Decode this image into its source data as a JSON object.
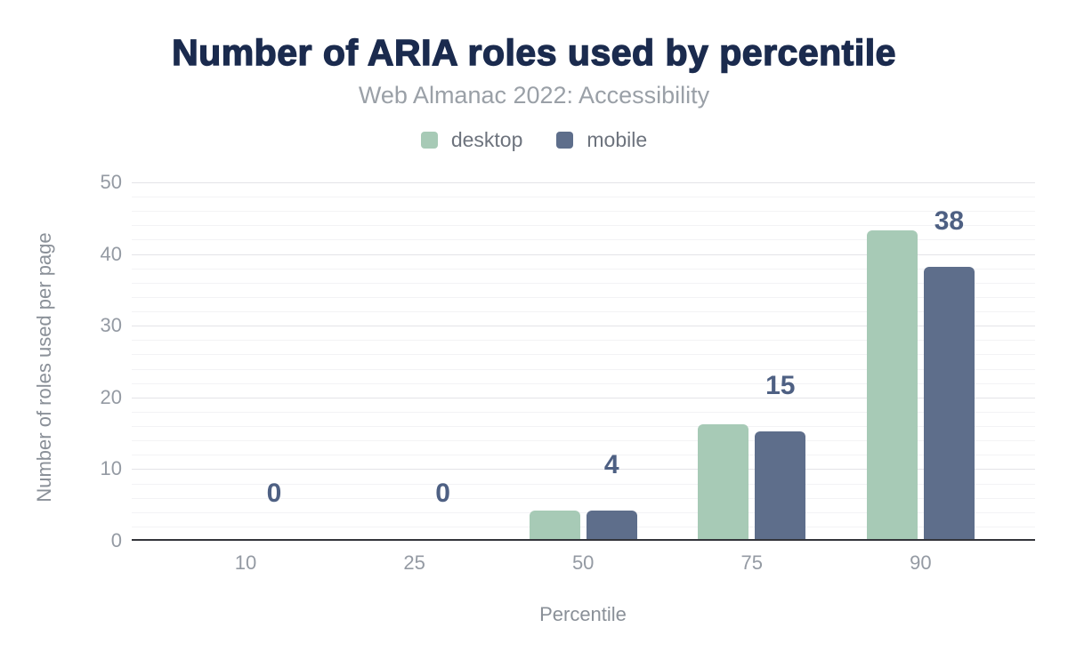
{
  "figure": {
    "title": "Number of ARIA roles used by percentile",
    "subtitle": "Web Almanac 2022: Accessibility",
    "x_axis_title": "Percentile",
    "y_axis_title": "Number of roles used per page"
  },
  "chart_data": {
    "type": "bar",
    "title": "Number of ARIA roles used by percentile",
    "subtitle": "Web Almanac 2022: Accessibility",
    "xlabel": "Percentile",
    "ylabel": "Number of roles used per page",
    "categories": [
      "10",
      "25",
      "50",
      "75",
      "90"
    ],
    "series": [
      {
        "name": "desktop",
        "color": "#a7cab6",
        "values": [
          0,
          0,
          4,
          16,
          43
        ]
      },
      {
        "name": "mobile",
        "color": "#5e6e8b",
        "values": [
          0,
          0,
          4,
          15,
          38
        ]
      }
    ],
    "data_labels": {
      "on_series": "mobile",
      "values": [
        "0",
        "0",
        "4",
        "15",
        "38"
      ],
      "color": "#4e6083"
    },
    "ylim": [
      0,
      50
    ],
    "y_major_ticks": [
      0,
      10,
      20,
      30,
      40,
      50
    ],
    "y_minor_step": 2,
    "grid": true,
    "legend_position": "top"
  },
  "colors": {
    "title": "#1b2b4e",
    "subtitle": "#9aa0a7",
    "axis_line": "#34353b",
    "grid_major": "#e4e4e8",
    "grid_minor": "#f3f3f5",
    "tick_label": "#949aa3",
    "background": "#ffffff"
  }
}
